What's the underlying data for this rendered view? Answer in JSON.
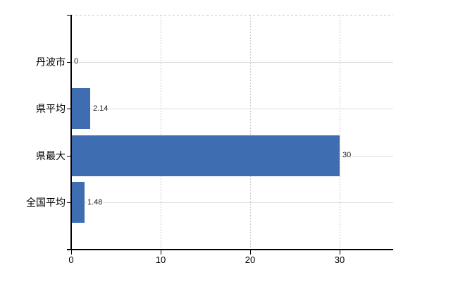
{
  "chart_data": {
    "type": "bar",
    "orientation": "horizontal",
    "title": "",
    "xlabel": "",
    "ylabel": "",
    "categories": [
      "丹波市",
      "県平均",
      "県最大",
      "全国平均"
    ],
    "values": [
      0,
      2.14,
      30,
      1.48
    ],
    "value_labels": [
      "0",
      "2.14",
      "30",
      "1.48"
    ],
    "x_ticks": [
      0,
      10,
      20,
      30
    ],
    "x_tick_labels": [
      "0",
      "10",
      "20",
      "30"
    ],
    "xlim": [
      0,
      36
    ],
    "grid": true,
    "legend": false,
    "gridline_style": {
      "horizontal": "solid",
      "vertical": "dashed",
      "plot_top_border": "dashed"
    },
    "colors": {
      "bar": "#3e6db1",
      "horizontal_grid": "#d8ded8",
      "vertical_grid": "#c9c9c9",
      "axis": "#000000",
      "category_label": "#000000",
      "value_label": "#1a1a1a",
      "background": "#ffffff"
    }
  }
}
